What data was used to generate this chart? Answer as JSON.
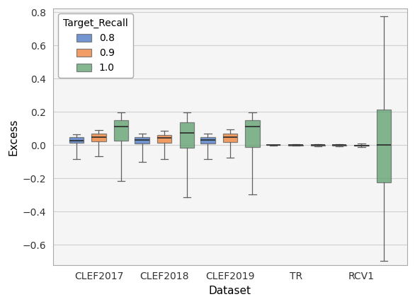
{
  "datasets": [
    "CLEF2017",
    "CLEF2018",
    "CLEF2019",
    "TR",
    "RCV1"
  ],
  "recall_labels": [
    "0.8",
    "0.9",
    "1.0"
  ],
  "colors": [
    "#4472C4",
    "#ED7D31",
    "#5B9E6B"
  ],
  "xlabel": "Dataset",
  "ylabel": "Excess",
  "ylim": [
    -0.72,
    0.82
  ],
  "yticks": [
    0.8,
    0.6,
    0.4,
    0.2,
    0.0,
    -0.2,
    -0.4,
    -0.6
  ],
  "legend_title": "Target_Recall",
  "box_data": {
    "CLEF2017": {
      "0.8": {
        "whislo": -0.085,
        "q1": 0.012,
        "med": 0.028,
        "q3": 0.048,
        "whishi": 0.065
      },
      "0.9": {
        "whislo": -0.065,
        "q1": 0.022,
        "med": 0.048,
        "q3": 0.068,
        "whishi": 0.092
      },
      "1.0": {
        "whislo": -0.215,
        "q1": 0.028,
        "med": 0.11,
        "q3": 0.148,
        "whishi": 0.198
      }
    },
    "CLEF2018": {
      "0.8": {
        "whislo": -0.1,
        "q1": 0.008,
        "med": 0.03,
        "q3": 0.048,
        "whishi": 0.068
      },
      "0.9": {
        "whislo": -0.085,
        "q1": 0.015,
        "med": 0.042,
        "q3": 0.06,
        "whishi": 0.085
      },
      "1.0": {
        "whislo": -0.315,
        "q1": -0.015,
        "med": 0.075,
        "q3": 0.135,
        "whishi": 0.198
      }
    },
    "CLEF2019": {
      "0.8": {
        "whislo": -0.085,
        "q1": 0.01,
        "med": 0.03,
        "q3": 0.048,
        "whishi": 0.068
      },
      "0.9": {
        "whislo": -0.075,
        "q1": 0.018,
        "med": 0.048,
        "q3": 0.07,
        "whishi": 0.095
      },
      "1.0": {
        "whislo": -0.295,
        "q1": -0.01,
        "med": 0.11,
        "q3": 0.148,
        "whishi": 0.198
      }
    },
    "TR": {
      "0.8": {
        "whislo": -0.003,
        "q1": -0.001,
        "med": 0.0,
        "q3": 0.001,
        "whishi": 0.003
      },
      "0.9": {
        "whislo": -0.004,
        "q1": -0.002,
        "med": -0.001,
        "q3": 0.001,
        "whishi": 0.004
      },
      "1.0": {
        "whislo": -0.006,
        "q1": -0.003,
        "med": -0.001,
        "q3": 0.002,
        "whishi": 0.005
      }
    },
    "RCV1": {
      "0.8": {
        "whislo": -0.008,
        "q1": -0.004,
        "med": -0.001,
        "q3": 0.002,
        "whishi": 0.006
      },
      "0.9": {
        "whislo": -0.012,
        "q1": -0.005,
        "med": -0.002,
        "q3": 0.002,
        "whishi": 0.008
      },
      "1.0": {
        "whislo": -0.695,
        "q1": -0.225,
        "med": 0.0,
        "q3": 0.215,
        "whishi": 0.775
      }
    }
  }
}
